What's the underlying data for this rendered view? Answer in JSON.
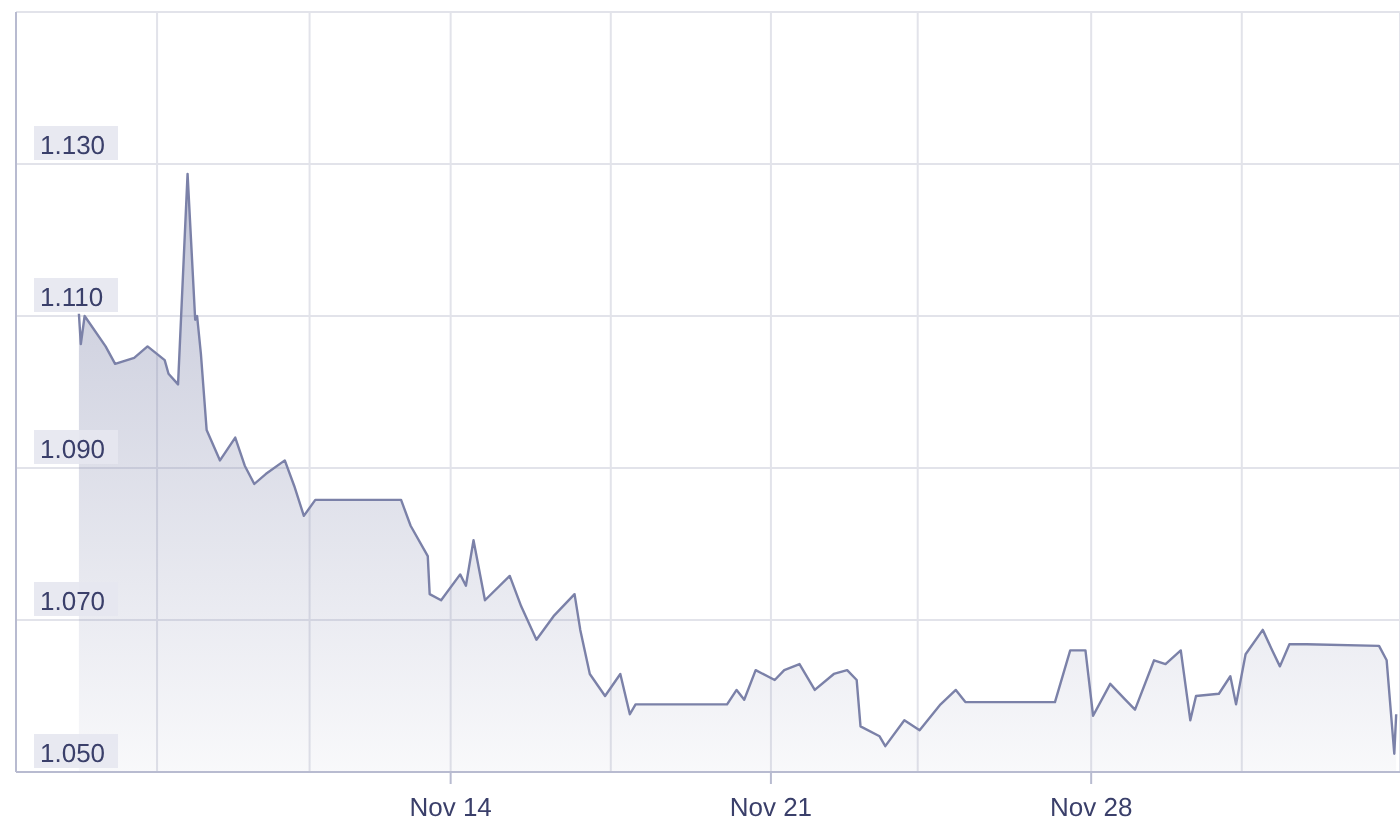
{
  "chart_data": {
    "type": "area",
    "x": [
      "--11-05T21:00",
      "--11-05T22:00",
      "--11-06T00:00",
      "--11-06T11:00",
      "--11-06T16:00",
      "--11-07T02:00",
      "--11-07T09:00",
      "--11-07T18:00",
      "--11-07T20:00",
      "--11-08T01:00",
      "--11-08T06:00",
      "--11-08T10:00",
      "--11-08T11:00",
      "--11-08T13:00",
      "--11-08T16:00",
      "--11-08T23:00",
      "--11-09T07:00",
      "--11-09T12:00",
      "--11-09T17:00",
      "--11-09T23:00",
      "--11-10T09:00",
      "--11-10T14:00",
      "--11-10T19:00",
      "--11-11T01:00",
      "--11-12T22:00",
      "--11-13T03:00",
      "--11-13T12:00",
      "--11-13T13:00",
      "--11-13T19:00",
      "--11-14T05:00",
      "--11-14T08:00",
      "--11-14T12:00",
      "--11-14T18:00",
      "--11-15T07:00",
      "--11-15T13:00",
      "--11-15T21:00",
      "--11-16T06:00",
      "--11-16T17:00",
      "--11-16T20:00",
      "--11-17T01:00",
      "--11-17T09:00",
      "--11-17T17:00",
      "--11-17T22:00",
      "--11-18T01:00",
      "--11-20T01:00",
      "--11-20T06:00",
      "--11-20T10:00",
      "--11-20T16:00",
      "--11-21T02:00",
      "--11-21T07:00",
      "--11-21T15:00",
      "--11-21T23:00",
      "--11-22T09:00",
      "--11-22T16:00",
      "--11-22T21:00",
      "--11-22T23:00",
      "--11-23T09:00",
      "--11-23T12:00",
      "--11-23T22:00",
      "--11-24T06:00",
      "--11-24T17:00",
      "--11-25T01:00",
      "--11-25T06:00",
      "--11-27T05:00",
      "--11-27T13:00",
      "--11-27T21:00",
      "--11-28T01:00",
      "--11-28T10:00",
      "--11-28T18:00",
      "--11-28T23:00",
      "--11-29T09:00",
      "--11-29T15:00",
      "--11-29T23:00",
      "--11-30T04:00",
      "--11-30T07:00",
      "--11-30T19:00",
      "--12-01T01:00",
      "--12-01T04:00",
      "--12-01T09:00",
      "--12-01T18:00",
      "--12-01T23:00",
      "--12-02T03:00",
      "--12-02T08:00",
      "--12-02T17:00",
      "--12-04T07:00",
      "--12-04T11:00",
      "--12-04T15:00",
      "--12-04T16:00"
    ],
    "series": [
      {
        "color": "#7b81a8",
        "values": [
          1.1103,
          1.1063,
          1.11,
          1.106,
          1.1037,
          1.1045,
          1.106,
          1.1042,
          1.1024,
          1.101,
          1.1287,
          1.1095,
          1.11,
          1.105,
          1.095,
          1.091,
          1.094,
          1.0903,
          1.0879,
          1.0892,
          1.091,
          1.0876,
          1.0837,
          1.0858,
          1.0858,
          1.0824,
          1.0784,
          1.0734,
          1.0726,
          1.076,
          1.0745,
          1.0805,
          1.0726,
          1.0758,
          1.0718,
          1.0674,
          1.0705,
          1.0734,
          1.0687,
          1.0629,
          1.06,
          1.0629,
          1.0576,
          1.0589,
          1.0589,
          1.0608,
          1.0595,
          1.0634,
          1.0621,
          1.0634,
          1.0642,
          1.0608,
          1.0629,
          1.0634,
          1.0621,
          1.056,
          1.0547,
          1.0534,
          1.0568,
          1.0555,
          1.0589,
          1.0608,
          1.0592,
          1.0592,
          1.066,
          1.066,
          1.0574,
          1.0616,
          1.0595,
          1.0582,
          1.0647,
          1.0642,
          1.066,
          1.0568,
          1.06,
          1.0603,
          1.0626,
          1.0589,
          1.0655,
          1.0687,
          1.066,
          1.0639,
          1.0668,
          1.0668,
          1.0666,
          1.0647,
          1.0524,
          1.0576
        ]
      }
    ],
    "xlim": [
      "--11-04T12:00",
      "--12-04T18:00"
    ],
    "xticks": [
      {
        "value": "--11-07T14:00",
        "label": null
      },
      {
        "value": "--11-10T22:00",
        "label": null
      },
      {
        "value": "--11-14",
        "label": "Nov 14"
      },
      {
        "value": "--11-17T12:00",
        "label": null
      },
      {
        "value": "--11-21",
        "label": "Nov 21"
      },
      {
        "value": "--11-24T05:00",
        "label": null
      },
      {
        "value": "--11-28",
        "label": "Nov 28"
      },
      {
        "value": "--12-01T07:00",
        "label": null
      }
    ],
    "ylim": [
      1.05,
      1.15
    ],
    "yticks": [
      {
        "value": 1.05,
        "label": "1.050"
      },
      {
        "value": 1.07,
        "label": "1.070"
      },
      {
        "value": 1.09,
        "label": "1.090"
      },
      {
        "value": 1.11,
        "label": "1.110"
      },
      {
        "value": 1.13,
        "label": "1.130"
      }
    ],
    "grid": true
  }
}
